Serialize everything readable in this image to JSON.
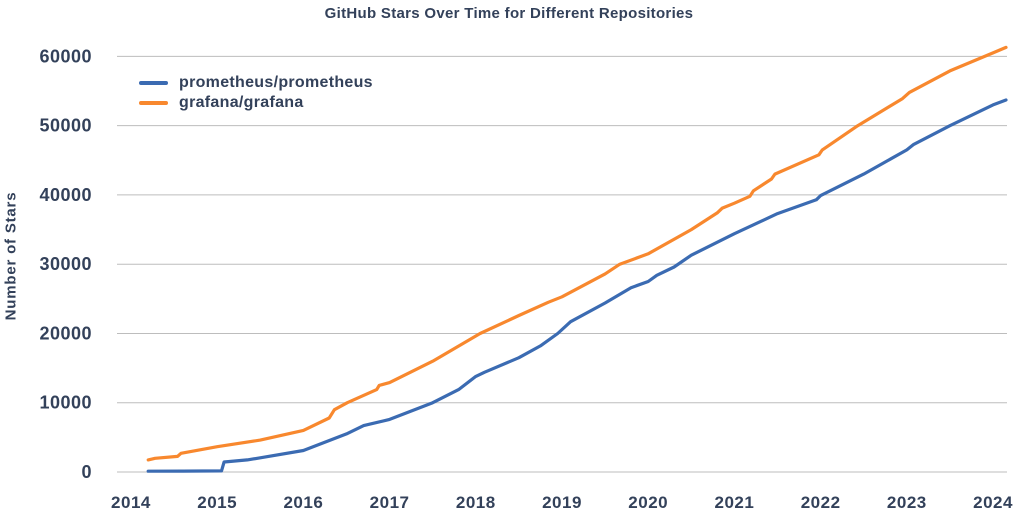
{
  "chart_data": {
    "type": "line",
    "title": "GitHub Stars Over Time for Different Repositories",
    "xlabel": "",
    "ylabel": "Number of Stars",
    "x_ticks": [
      2014,
      2015,
      2016,
      2017,
      2018,
      2019,
      2020,
      2021,
      2022,
      2023,
      2024
    ],
    "y_ticks": [
      0,
      10000,
      20000,
      30000,
      40000,
      50000,
      60000
    ],
    "x_range": [
      2013.838,
      2024.162
    ],
    "y_range": [
      0,
      61500
    ],
    "grid": "horizontal-only",
    "grid_color": "#bdbdbd",
    "text_color": "#33415a",
    "legend_position": "upper-left-inside",
    "series": [
      {
        "name": "prometheus/prometheus",
        "color": "#3b6bb2",
        "points": [
          [
            2014.2,
            120
          ],
          [
            2014.6,
            130
          ],
          [
            2015.05,
            160
          ],
          [
            2015.08,
            1450
          ],
          [
            2015.35,
            1750
          ],
          [
            2015.5,
            2050
          ],
          [
            2016.0,
            3100
          ],
          [
            2016.5,
            5500
          ],
          [
            2016.7,
            6700
          ],
          [
            2017.0,
            7600
          ],
          [
            2017.5,
            10000
          ],
          [
            2017.8,
            11900
          ],
          [
            2018.0,
            13800
          ],
          [
            2018.1,
            14400
          ],
          [
            2018.5,
            16500
          ],
          [
            2018.75,
            18200
          ],
          [
            2018.95,
            20000
          ],
          [
            2019.1,
            21700
          ],
          [
            2019.5,
            24400
          ],
          [
            2019.8,
            26600
          ],
          [
            2020.0,
            27500
          ],
          [
            2020.1,
            28400
          ],
          [
            2020.3,
            29600
          ],
          [
            2020.5,
            31300
          ],
          [
            2021.0,
            34400
          ],
          [
            2021.5,
            37300
          ],
          [
            2021.95,
            39300
          ],
          [
            2022.0,
            39900
          ],
          [
            2022.5,
            43000
          ],
          [
            2023.0,
            46500
          ],
          [
            2023.08,
            47300
          ],
          [
            2023.5,
            50000
          ],
          [
            2024.0,
            53000
          ],
          [
            2024.15,
            53700
          ]
        ]
      },
      {
        "name": "grafana/grafana",
        "color": "#f8882e",
        "points": [
          [
            2014.2,
            1750
          ],
          [
            2014.28,
            1980
          ],
          [
            2014.54,
            2250
          ],
          [
            2014.58,
            2700
          ],
          [
            2015.0,
            3650
          ],
          [
            2015.5,
            4600
          ],
          [
            2016.0,
            6000
          ],
          [
            2016.3,
            7800
          ],
          [
            2016.36,
            9000
          ],
          [
            2016.51,
            10000
          ],
          [
            2016.85,
            11900
          ],
          [
            2016.88,
            12500
          ],
          [
            2017.0,
            12900
          ],
          [
            2017.5,
            16000
          ],
          [
            2018.05,
            20000
          ],
          [
            2018.5,
            22600
          ],
          [
            2018.84,
            24500
          ],
          [
            2019.0,
            25300
          ],
          [
            2019.5,
            28600
          ],
          [
            2019.67,
            30000
          ],
          [
            2020.0,
            31500
          ],
          [
            2020.5,
            35000
          ],
          [
            2020.8,
            37400
          ],
          [
            2020.86,
            38100
          ],
          [
            2021.0,
            38800
          ],
          [
            2021.18,
            39800
          ],
          [
            2021.22,
            40600
          ],
          [
            2021.43,
            42300
          ],
          [
            2021.47,
            43000
          ],
          [
            2021.98,
            45800
          ],
          [
            2022.02,
            46500
          ],
          [
            2022.43,
            50000
          ],
          [
            2022.95,
            53900
          ],
          [
            2023.03,
            54800
          ],
          [
            2023.5,
            57900
          ],
          [
            2024.0,
            60500
          ],
          [
            2024.15,
            61300
          ]
        ]
      }
    ]
  }
}
